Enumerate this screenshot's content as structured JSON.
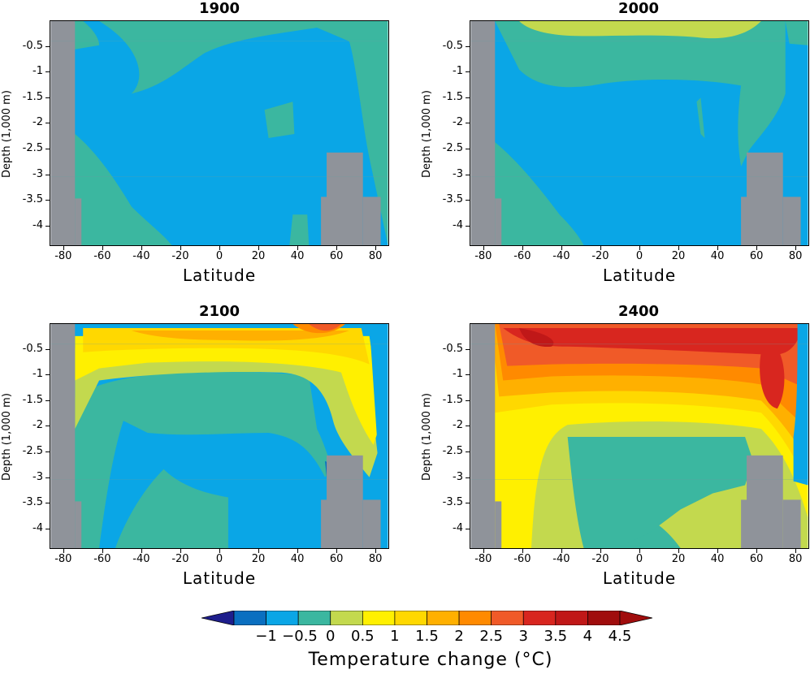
{
  "chart_data": [
    {
      "type": "heatmap",
      "title": "1900",
      "xlabel": "Latitude",
      "ylabel": "Depth (1,000 m)",
      "x_ticks": [
        "-80",
        "-60",
        "-40",
        "-20",
        "0",
        "20",
        "40",
        "60",
        "80"
      ],
      "y_ticks": [
        "-0.5",
        "-1",
        "-1.5",
        "-2",
        "-2.5",
        "-3",
        "-3.5",
        "-4"
      ],
      "xlim": [
        -87,
        87
      ],
      "ylim": [
        -4.4,
        0
      ],
      "dominant_range_C": [
        -0.5,
        0.5
      ]
    },
    {
      "type": "heatmap",
      "title": "2000",
      "xlabel": "Latitude",
      "ylabel": "Depth (1,000 m)",
      "x_ticks": [
        "-80",
        "-60",
        "-40",
        "-20",
        "0",
        "20",
        "40",
        "60",
        "80"
      ],
      "y_ticks": [
        "-0.5",
        "-1",
        "-1.5",
        "-2",
        "-2.5",
        "-3",
        "-3.5",
        "-4"
      ],
      "xlim": [
        -87,
        87
      ],
      "ylim": [
        -4.4,
        0
      ],
      "dominant_range_C": [
        -0.5,
        1
      ]
    },
    {
      "type": "heatmap",
      "title": "2100",
      "xlabel": "Latitude",
      "ylabel": "Depth (1,000 m)",
      "x_ticks": [
        "-80",
        "-60",
        "-40",
        "-20",
        "0",
        "20",
        "40",
        "60",
        "80"
      ],
      "y_ticks": [
        "-0.5",
        "-1",
        "-1.5",
        "-2",
        "-2.5",
        "-3",
        "-3.5",
        "-4"
      ],
      "xlim": [
        -87,
        87
      ],
      "ylim": [
        -4.4,
        0
      ],
      "dominant_range_C": [
        -0.5,
        4.5
      ]
    },
    {
      "type": "heatmap",
      "title": "2400",
      "xlabel": "Latitude",
      "ylabel": "Depth (1,000 m)",
      "x_ticks": [
        "-80",
        "-60",
        "-40",
        "-20",
        "0",
        "20",
        "40",
        "60",
        "80"
      ],
      "y_ticks": [
        "-0.5",
        "-1",
        "-1.5",
        "-2",
        "-2.5",
        "-3",
        "-3.5",
        "-4"
      ],
      "xlim": [
        -87,
        87
      ],
      "ylim": [
        -4.4,
        0
      ],
      "dominant_range_C": [
        0,
        4.5
      ]
    }
  ],
  "colorbar": {
    "title": "Temperature change (°C)",
    "labels": [
      "−1",
      "−0.5",
      "0",
      "0.5",
      "1",
      "1.5",
      "2",
      "2.5",
      "3",
      "3.5",
      "4",
      "4.5"
    ],
    "colors": [
      "#1e1e8c",
      "#0a6fc0",
      "#0aa6e6",
      "#3bb7a0",
      "#c3d94e",
      "#fff000",
      "#ffd800",
      "#ffb000",
      "#ff8a00",
      "#f05a28",
      "#d8261f",
      "#c01818",
      "#a00d0d"
    ],
    "land_color": "#8f939a"
  }
}
